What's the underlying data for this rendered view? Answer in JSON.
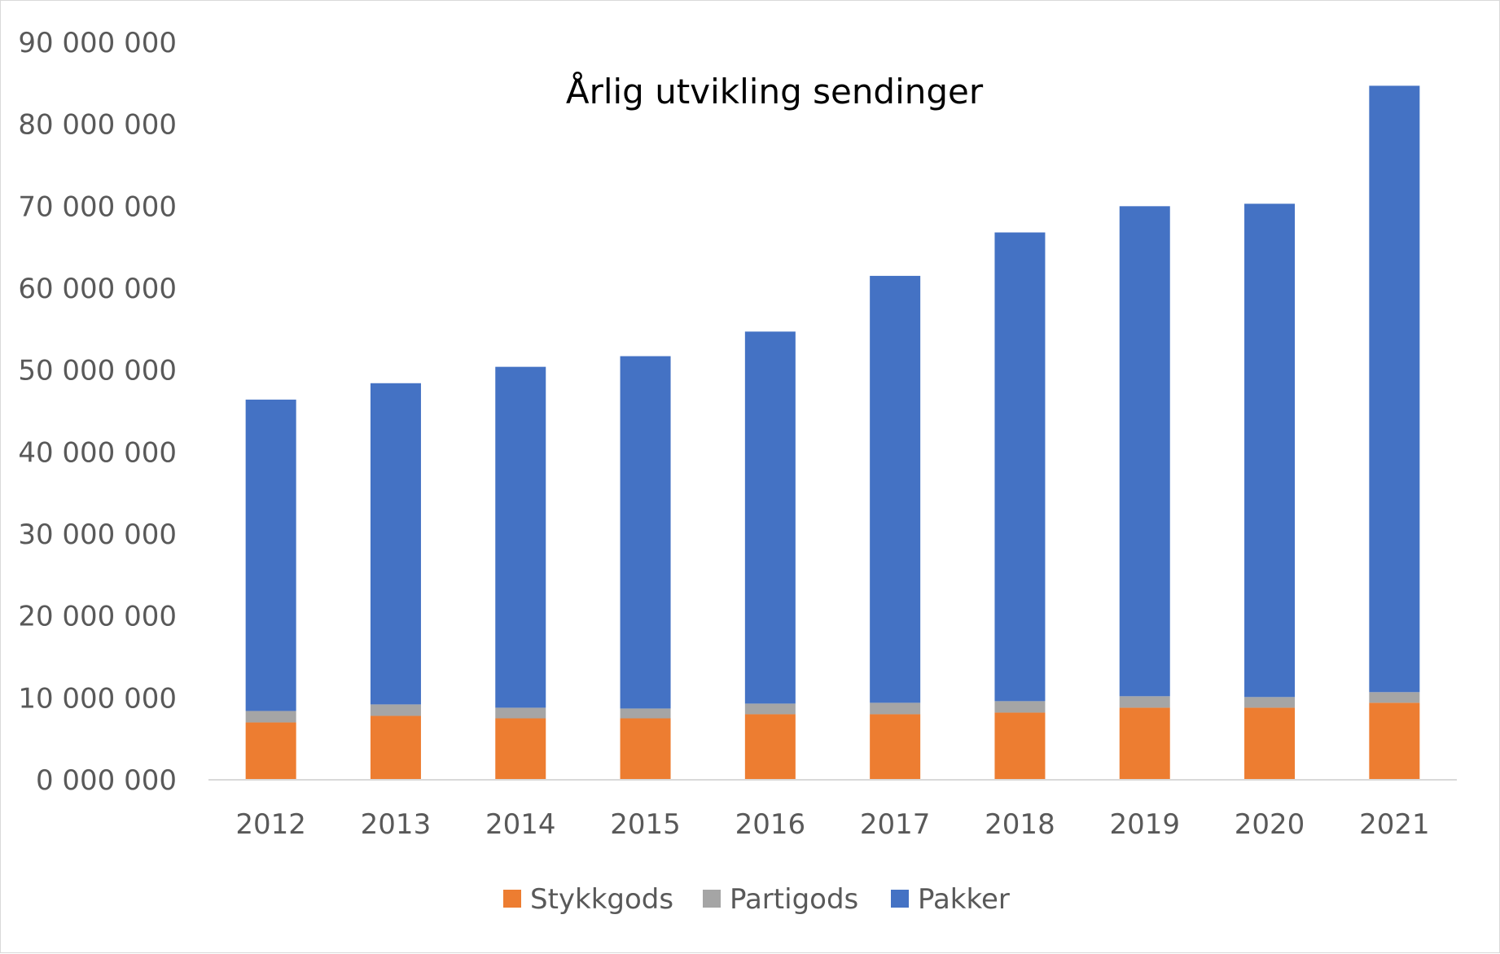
{
  "chart_data": {
    "type": "bar",
    "stacked": true,
    "title": "Årlig utvikling sendinger",
    "xlabel": "",
    "ylabel": "",
    "categories": [
      "2012",
      "2013",
      "2014",
      "2015",
      "2016",
      "2017",
      "2018",
      "2019",
      "2020",
      "2021"
    ],
    "series": [
      {
        "name": "Stykkgods",
        "color": "#ED7D31",
        "values": [
          7000000,
          7800000,
          7500000,
          7500000,
          8000000,
          8000000,
          8200000,
          8800000,
          8800000,
          9400000
        ]
      },
      {
        "name": "Partigods",
        "color": "#A5A5A5",
        "values": [
          1400000,
          1400000,
          1300000,
          1200000,
          1300000,
          1400000,
          1400000,
          1400000,
          1300000,
          1300000
        ]
      },
      {
        "name": "Pakker",
        "color": "#4472C4",
        "values": [
          38000000,
          39200000,
          41600000,
          43000000,
          45400000,
          52100000,
          57200000,
          59800000,
          60200000,
          74000000
        ]
      }
    ],
    "ylim": [
      0,
      90000000
    ],
    "yticks": [
      0,
      10000000,
      20000000,
      30000000,
      40000000,
      50000000,
      60000000,
      70000000,
      80000000,
      90000000
    ],
    "ytick_labels": [
      "0 000 000",
      "10 000 000",
      "20 000 000",
      "30 000 000",
      "40 000 000",
      "50 000 000",
      "60 000 000",
      "70 000 000",
      "80 000 000",
      "90 000 000"
    ],
    "grid": false,
    "legend_position": "bottom"
  }
}
